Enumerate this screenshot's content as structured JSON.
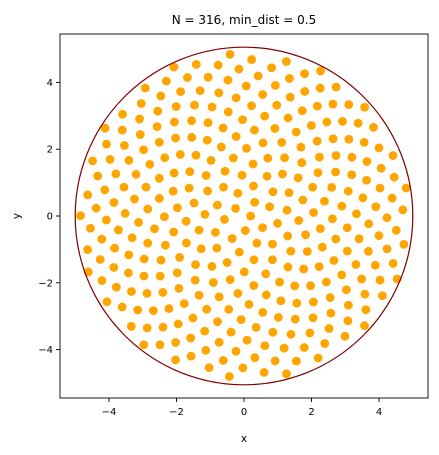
{
  "chart_data": {
    "type": "scatter",
    "title": "N = 316, min_dist = 0.5",
    "xlabel": "x",
    "ylabel": "y",
    "xlim": [
      -5.45,
      5.45
    ],
    "ylim": [
      -5.45,
      5.45
    ],
    "xticks": [
      -4,
      -2,
      0,
      2,
      4
    ],
    "yticks": [
      -4,
      -2,
      0,
      2,
      4
    ],
    "xtick_labels": [
      "−4",
      "−2",
      "0",
      "2",
      "4"
    ],
    "ytick_labels": [
      "−4",
      "−2",
      "0",
      "2",
      "4"
    ],
    "boundary_circle": {
      "cx": 0,
      "cy": 0,
      "r": 5
    },
    "n_points": 316,
    "min_dist": 0.5,
    "grid": false,
    "legend": "none",
    "colors": {
      "points": "#FFA500",
      "circle": "#800000",
      "axes": "#000000"
    }
  }
}
